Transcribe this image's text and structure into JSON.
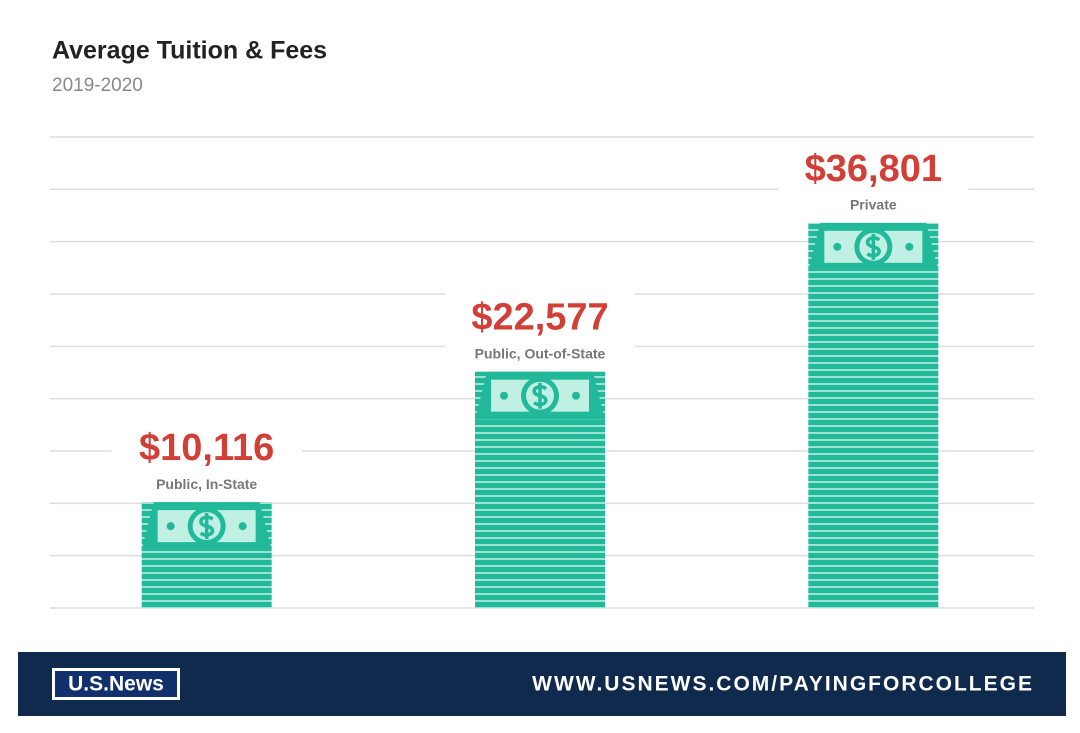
{
  "chart_data": {
    "type": "bar",
    "title": "Average Tuition & Fees",
    "subtitle": "2019-2020",
    "categories": [
      "Public, In-State",
      "Public, Out-of-State",
      "Private"
    ],
    "values": [
      10116,
      22577,
      36801
    ],
    "value_labels": [
      "$10,116",
      "$22,577",
      "$36,801"
    ],
    "color": "#22b99a",
    "label_color": "#d23f36",
    "ylim": [
      0,
      45000
    ],
    "yticks": [
      0,
      5000,
      10000,
      15000,
      20000,
      25000,
      30000,
      35000,
      40000,
      45000
    ],
    "grid": true
  },
  "footer": {
    "logo": "U.S.News",
    "url": "WWW.USNEWS.COM/PAYINGFORCOLLEGE"
  }
}
